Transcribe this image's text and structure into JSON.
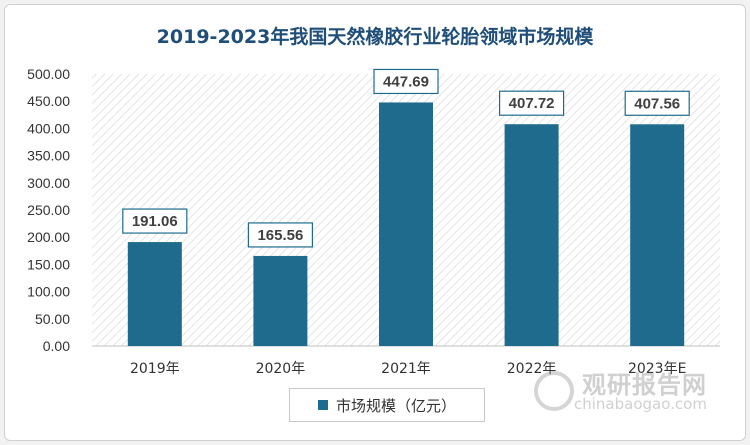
{
  "chart_data": {
    "type": "bar",
    "title": "2019-2023年我国天然橡胶行业轮胎领域市场规模",
    "categories": [
      "2019年",
      "2020年",
      "2021年",
      "2022年",
      "2023年E"
    ],
    "series": [
      {
        "name": "市场规模（亿元）",
        "values": [
          191.06,
          165.56,
          447.69,
          407.72,
          407.56
        ]
      }
    ],
    "data_labels": [
      "191.06",
      "165.56",
      "447.69",
      "407.72",
      "407.56"
    ],
    "ylim": [
      0,
      500
    ],
    "yticks": [
      "0.00",
      "50.00",
      "100.00",
      "150.00",
      "200.00",
      "250.00",
      "300.00",
      "350.00",
      "400.00",
      "450.00",
      "500.00"
    ],
    "grid": false,
    "legend_position": "bottom",
    "bar_color": "#1f6b8e"
  },
  "watermark": {
    "cn": "观研报告网",
    "en": "chinabaogao.com"
  }
}
